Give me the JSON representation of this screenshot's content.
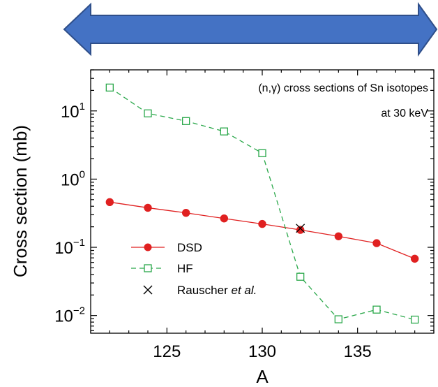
{
  "chart_data": {
    "type": "line",
    "y_scale": "log",
    "xlabel": "A",
    "ylabel": "Cross section (mb)",
    "xlim": [
      121,
      139
    ],
    "ylim": [
      0.0055,
      40
    ],
    "x_ticks": [
      125,
      130,
      135
    ],
    "y_ticks": [
      {
        "value": 0.01,
        "base": "10",
        "exp": "−2"
      },
      {
        "value": 0.1,
        "base": "10",
        "exp": "−1"
      },
      {
        "value": 1,
        "base": "10",
        "exp": "0"
      },
      {
        "value": 10,
        "base": "10",
        "exp": "1"
      }
    ],
    "annotations": [
      "(n,γ) cross sections of Sn isotopes",
      "at 30 keV"
    ],
    "series": [
      {
        "name": "DSD",
        "color": "#e02020",
        "marker": "filled-circle",
        "line": "solid",
        "x": [
          122,
          124,
          126,
          128,
          130,
          132,
          134,
          136,
          138
        ],
        "values": [
          0.46,
          0.38,
          0.32,
          0.265,
          0.22,
          0.18,
          0.145,
          0.115,
          0.068
        ]
      },
      {
        "name": "HF",
        "color": "#2aa84a",
        "marker": "open-square",
        "line": "dashed",
        "x": [
          122,
          124,
          126,
          128,
          130,
          132,
          134,
          136,
          138
        ],
        "values": [
          22,
          9.2,
          7.1,
          5.0,
          2.4,
          0.037,
          0.0088,
          0.0122,
          0.0087
        ]
      },
      {
        "name_parts": [
          "Rauscher ",
          "et al."
        ],
        "color": "#000000",
        "marker": "x",
        "line": "none",
        "x": [
          132
        ],
        "values": [
          0.19
        ]
      }
    ],
    "legend_position": "lower-left",
    "decoration": {
      "arrow_color": "#4472c4",
      "arrow_outline": "#2f4f8a",
      "arrow": "double-headed-horizontal"
    }
  }
}
